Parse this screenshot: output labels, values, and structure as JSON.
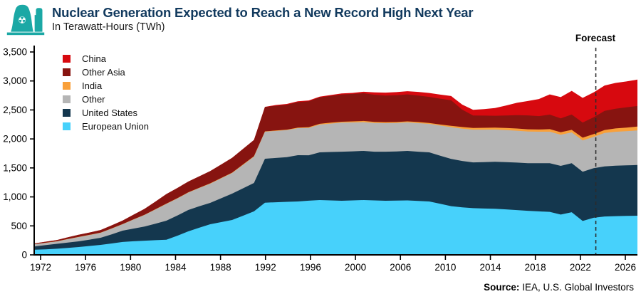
{
  "header": {
    "title": "Nuclear Generation Expected to Reach a New Record High Next Year",
    "subtitle": "In Terawatt-Hours (TWh)",
    "title_color": "#123A5E",
    "icon_color": "#1BA8A5",
    "icon_name": "nuclear-plant-icon"
  },
  "chart_data": {
    "type": "area",
    "stacked": true,
    "title": "Nuclear Generation Expected to Reach a New Record High Next Year",
    "units_label": "In Terawatt-Hours (TWh)",
    "xlabel": "",
    "ylabel": "",
    "ylim": [
      0,
      3500
    ],
    "yticks": [
      0,
      500,
      1000,
      1500,
      2000,
      2500,
      3000,
      3500
    ],
    "xtick_labels": [
      "1972",
      "1976",
      "1980",
      "1984",
      "1988",
      "1992",
      "1996",
      "2000",
      "2006",
      "2010",
      "2014",
      "2018",
      "2022",
      "2026"
    ],
    "grid": false,
    "legend_position": "top-left-inside",
    "legend_order_top_down": [
      "China",
      "Other Asia",
      "India",
      "Other",
      "United States",
      "European Union"
    ],
    "forecast": {
      "label": "Forecast",
      "year": 2023.2
    },
    "x": [
      1972,
      1973,
      1974,
      1975,
      1976,
      1977,
      1978,
      1979,
      1980,
      1981,
      1982,
      1983,
      1984,
      1985,
      1986,
      1987,
      1988,
      1989,
      1990,
      1991,
      1992,
      1993,
      1994,
      1995,
      1996,
      1997,
      1998,
      1999,
      2000,
      2001,
      2002,
      2003,
      2004,
      2005,
      2006,
      2007,
      2008,
      2009,
      2010,
      2011,
      2012,
      2013,
      2014,
      2015,
      2016,
      2017,
      2018,
      2019,
      2020,
      2021,
      2022,
      2023,
      2024,
      2025,
      2026,
      2027
    ],
    "series": [
      {
        "name": "European Union",
        "color": "#47D1FB",
        "values": [
          88,
          96,
          105,
          120,
          135,
          153,
          172,
          196,
          222,
          234,
          245,
          253,
          262,
          330,
          405,
          468,
          528,
          565,
          602,
          676,
          750,
          900,
          908,
          915,
          921,
          934,
          946,
          940,
          933,
          940,
          946,
          940,
          933,
          937,
          940,
          930,
          921,
          880,
          840,
          820,
          805,
          800,
          795,
          785,
          772,
          760,
          750,
          742,
          695,
          735,
          585,
          640,
          662,
          668,
          672,
          675
        ]
      },
      {
        "name": "United States",
        "color": "#14374E",
        "values": [
          58,
          72,
          85,
          92,
          98,
          110,
          123,
          158,
          195,
          219,
          243,
          285,
          327,
          348,
          369,
          369,
          368,
          411,
          454,
          472,
          490,
          758,
          764,
          770,
          798,
          784,
          822,
          835,
          847,
          846,
          847,
          840,
          847,
          846,
          853,
          850,
          847,
          830,
          815,
          800,
          790,
          800,
          810,
          815,
          820,
          820,
          830,
          840,
          840,
          845,
          850,
          855,
          865,
          870,
          872,
          875
        ]
      },
      {
        "name": "Other",
        "color": "#B5B5B5",
        "values": [
          38,
          40,
          42,
          58,
          74,
          80,
          86,
          99,
          111,
          156,
          200,
          245,
          290,
          295,
          300,
          316,
          332,
          344,
          356,
          406,
          455,
          466,
          466,
          467,
          467,
          473,
          479,
          490,
          500,
          498,
          496,
          494,
          492,
          492,
          492,
          492,
          492,
          520,
          548,
          556,
          565,
          560,
          556,
          552,
          550,
          548,
          545,
          542,
          538,
          532,
          540,
          540,
          575,
          585,
          590,
          595
        ]
      },
      {
        "name": "India",
        "color": "#F9A03A",
        "values": [
          2,
          2,
          2,
          3,
          3,
          3,
          3,
          3,
          3,
          4,
          4,
          4,
          5,
          5,
          5,
          5,
          6,
          6,
          6,
          7,
          7,
          7,
          8,
          8,
          10,
          12,
          14,
          15,
          17,
          19,
          21,
          19,
          17,
          17,
          18,
          20,
          15,
          19,
          23,
          29,
          30,
          32,
          34,
          37,
          38,
          38,
          38,
          45,
          43,
          44,
          46,
          48,
          52,
          58,
          62,
          68
        ]
      },
      {
        "name": "Other Asia",
        "color": "#871410",
        "values": [
          12,
          17,
          22,
          29,
          36,
          40,
          45,
          52,
          60,
          80,
          100,
          132,
          165,
          175,
          185,
          197,
          210,
          232,
          255,
          267,
          280,
          420,
          425,
          430,
          440,
          447,
          455,
          462,
          470,
          474,
          478,
          469,
          460,
          462,
          465,
          457,
          450,
          445,
          440,
          300,
          215,
          210,
          205,
          215,
          230,
          240,
          230,
          250,
          240,
          265,
          262,
          290,
          330,
          340,
          348,
          355
        ]
      },
      {
        "name": "China",
        "color": "#D7090F",
        "values": [
          0,
          0,
          0,
          0,
          0,
          0,
          0,
          0,
          0,
          0,
          0,
          0,
          0,
          0,
          0,
          0,
          0,
          0,
          0,
          0,
          0,
          2,
          14,
          13,
          14,
          14,
          14,
          15,
          17,
          17,
          25,
          42,
          50,
          53,
          55,
          62,
          68,
          70,
          74,
          87,
          97,
          112,
          133,
          171,
          213,
          248,
          295,
          349,
          366,
          408,
          425,
          430,
          438,
          445,
          448,
          455
        ]
      }
    ]
  },
  "source": {
    "bold": "Source:",
    "text": "IEA, U.S. Global Investors"
  }
}
